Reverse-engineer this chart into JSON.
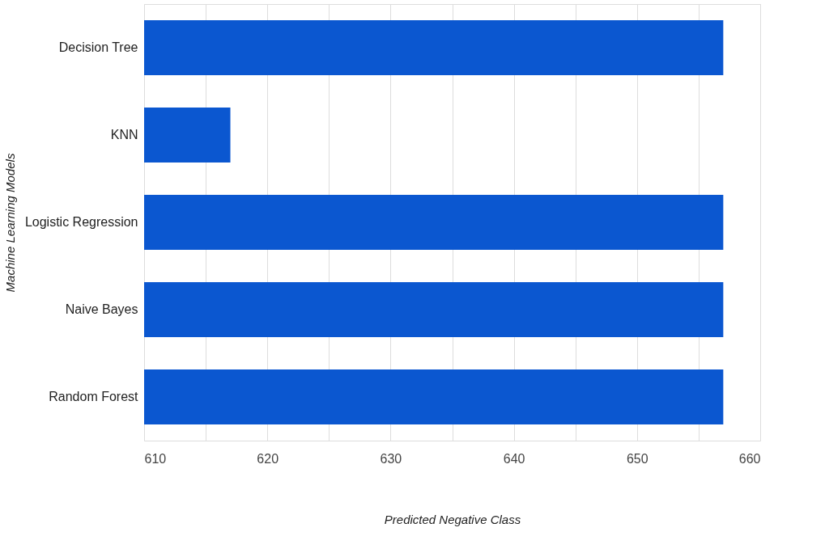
{
  "chart_data": {
    "type": "bar",
    "orientation": "horizontal",
    "xlabel": "Predicted Negative Class",
    "ylabel": "Machine Learning Models",
    "categories": [
      "Decision Tree",
      "KNN",
      "Logistic Regression",
      "Naive Bayes",
      "Random Forest"
    ],
    "values": [
      657,
      617,
      657,
      657,
      657
    ],
    "color": "#0b57d0",
    "xlim": [
      610,
      660
    ],
    "xticks": [
      610,
      {
        "value": 615,
        "label": null
      },
      620,
      {
        "value": 625,
        "label": null
      },
      630,
      {
        "value": 635,
        "label": null
      },
      640,
      {
        "value": 645,
        "label": null
      },
      650,
      {
        "value": 655,
        "label": null
      },
      660
    ],
    "grid": "x"
  }
}
